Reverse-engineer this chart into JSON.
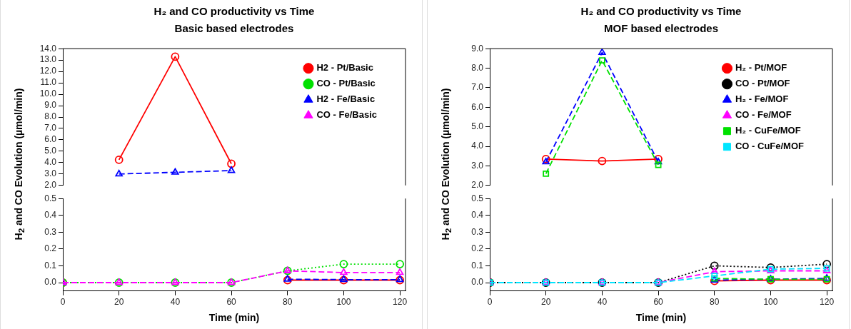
{
  "chart_data": [
    {
      "type": "line",
      "title": "H₂ and CO productivity vs Time",
      "subtitle": "Basic based electrodes",
      "xlim": [
        0,
        122
      ],
      "ylim": [
        2,
        14
      ],
      "yticks": [
        {
          "value": 2,
          "label": "2.0"
        },
        {
          "value": 3,
          "label": "3.0"
        },
        {
          "value": 4,
          "label": "4.0"
        },
        {
          "value": 5,
          "label": "5.0"
        },
        {
          "value": 6,
          "label": "6.0"
        },
        {
          "value": 7,
          "label": "7.0"
        },
        {
          "value": 8,
          "label": "8.0"
        },
        {
          "value": 9,
          "label": "9.0"
        },
        {
          "value": 10,
          "label": "10.0"
        },
        {
          "value": 11,
          "label": "11.0"
        },
        {
          "value": 12,
          "label": "12.0"
        },
        {
          "value": 13,
          "label": "13.0"
        },
        {
          "value": 14,
          "label": "14.0"
        }
      ],
      "tick_labels": "y",
      "grid": false,
      "legend": "top right",
      "series": [
        {
          "name": "H2 - Pt/Basic",
          "color": "#ff0000",
          "line_style": "solid",
          "marker": "circle",
          "x": [
            20,
            40,
            60
          ],
          "values": [
            4.25,
            13.3,
            3.9
          ]
        },
        {
          "name": "CO - Pt/Basic",
          "color": "#00e000",
          "line_style": "dotted",
          "marker": "circle"
        },
        {
          "name": "H2 - Fe/Basic",
          "color": "#0000ff",
          "line_style": "dashed",
          "marker": "triangle",
          "x": [
            20,
            40,
            60
          ],
          "values": [
            3.0,
            3.15,
            3.3
          ]
        },
        {
          "name": "CO - Fe/Basic",
          "color": "#ff00ff",
          "line_style": "dashed",
          "marker": "triangle"
        }
      ]
    },
    {
      "type": "line",
      "xlabel": "Time (min)",
      "ylabel": "H$_{2}$ and CO Evolution (µmol/min)",
      "x": [
        0,
        20,
        40,
        60,
        80,
        100,
        120
      ],
      "xlim": [
        0,
        122
      ],
      "xticks": [
        0,
        20,
        40,
        60,
        80,
        100,
        120
      ],
      "ylim": [
        -0.05,
        0.5
      ],
      "yticks": [
        {
          "value": 0,
          "label": "0.0"
        },
        {
          "value": 0.1,
          "label": "0.1"
        },
        {
          "value": 0.2,
          "label": "0.2"
        },
        {
          "value": 0.3,
          "label": "0.3"
        },
        {
          "value": 0.4,
          "label": "0.4"
        },
        {
          "value": 0.5,
          "label": "0.5"
        }
      ],
      "grid": false,
      "series": [
        {
          "color": "#ff0000",
          "line_style": "solid",
          "marker": "circle",
          "x": [
            0,
            20,
            80,
            100,
            120
          ],
          "values": [
            0,
            null,
            0.015,
            0.015,
            0.015
          ]
        },
        {
          "color": "#00e000",
          "line_style": "dotted",
          "marker": "circle",
          "values": [
            0,
            0,
            0,
            0,
            0.07,
            0.11,
            0.11
          ]
        },
        {
          "color": "#0000ff",
          "line_style": "dashed",
          "marker": "triangle",
          "x": [
            0,
            20,
            80,
            100,
            120
          ],
          "values": [
            0,
            null,
            0.02,
            0.018,
            0.018
          ]
        },
        {
          "color": "#ff00ff",
          "line_style": "dashed",
          "marker": "triangle",
          "values": [
            0,
            0,
            0,
            0,
            0.07,
            0.06,
            0.06
          ]
        }
      ]
    },
    {
      "type": "line",
      "title": "H₂ and CO productivity vs Time",
      "subtitle": "MOF based electrodes",
      "xlim": [
        0,
        122
      ],
      "ylim": [
        2,
        9
      ],
      "yticks": [
        {
          "value": 2,
          "label": "2.0"
        },
        {
          "value": 3,
          "label": "3.0"
        },
        {
          "value": 4,
          "label": "4.0"
        },
        {
          "value": 5,
          "label": "5.0"
        },
        {
          "value": 6,
          "label": "6.0"
        },
        {
          "value": 7,
          "label": "7.0"
        },
        {
          "value": 8,
          "label": "8.0"
        },
        {
          "value": 9,
          "label": "9.0"
        }
      ],
      "tick_labels": "y",
      "grid": false,
      "legend": "top right",
      "series": [
        {
          "name": "H₂ - Pt/MOF",
          "color": "#ff0000",
          "line_style": "solid",
          "marker": "circle",
          "x": [
            20,
            40,
            60
          ],
          "values": [
            3.35,
            3.25,
            3.35
          ]
        },
        {
          "name": "CO - Pt/MOF",
          "color": "#000000",
          "line_style": "dotted",
          "marker": "circle"
        },
        {
          "name": "H₂ - Fe/MOF",
          "color": "#0000ff",
          "line_style": "dashed",
          "marker": "triangle",
          "x": [
            20,
            40,
            60
          ],
          "values": [
            3.2,
            8.8,
            3.2
          ]
        },
        {
          "name": "CO - Fe/MOF",
          "color": "#ff00ff",
          "line_style": "dashed",
          "marker": "triangle"
        },
        {
          "name": "H₂ - CuFe/MOF",
          "color": "#00e000",
          "line_style": "dashed",
          "marker": "square",
          "x": [
            20,
            40,
            60
          ],
          "values": [
            2.6,
            8.4,
            3.05
          ]
        },
        {
          "name": "CO - CuFe/MOF",
          "color": "#00e5ff",
          "line_style": "dashed",
          "marker": "square"
        }
      ]
    },
    {
      "type": "line",
      "xlabel": "Time (min)",
      "ylabel": "H$_{2}$ and CO Evolution (µmol/min)",
      "x": [
        0,
        20,
        40,
        60,
        80,
        100,
        120
      ],
      "xlim": [
        0,
        122
      ],
      "xticks": [
        0,
        20,
        40,
        60,
        80,
        100,
        120
      ],
      "ylim": [
        -0.05,
        0.5
      ],
      "yticks": [
        {
          "value": 0,
          "label": "0.0"
        },
        {
          "value": 0.1,
          "label": "0.1"
        },
        {
          "value": 0.2,
          "label": "0.2"
        },
        {
          "value": 0.3,
          "label": "0.3"
        },
        {
          "value": 0.4,
          "label": "0.4"
        },
        {
          "value": 0.5,
          "label": "0.5"
        }
      ],
      "grid": false,
      "series": [
        {
          "color": "#ff0000",
          "line_style": "solid",
          "marker": "circle",
          "x": [
            0,
            20,
            80,
            100,
            120
          ],
          "values": [
            0,
            null,
            0.01,
            0.015,
            0.015
          ]
        },
        {
          "color": "#000000",
          "line_style": "dotted",
          "marker": "circle",
          "values": [
            0,
            0,
            0,
            0,
            0.1,
            0.09,
            0.11
          ]
        },
        {
          "color": "#0000ff",
          "line_style": "dashed",
          "marker": "triangle",
          "x": [
            0,
            20,
            80,
            100,
            120
          ],
          "values": [
            0,
            null,
            0.015,
            0.02,
            0.025
          ]
        },
        {
          "color": "#ff00ff",
          "line_style": "dashed",
          "marker": "triangle",
          "values": [
            0,
            0,
            0,
            0,
            0.065,
            0.07,
            0.07
          ]
        },
        {
          "color": "#00e000",
          "line_style": "dashed",
          "marker": "square",
          "x": [
            0,
            20,
            80,
            100,
            120
          ],
          "values": [
            0,
            null,
            0.025,
            0.02,
            0.02
          ]
        },
        {
          "color": "#00e5ff",
          "line_style": "dashed",
          "marker": "square",
          "values": [
            0,
            0,
            0,
            0,
            0.04,
            0.08,
            0.085
          ]
        }
      ]
    }
  ]
}
